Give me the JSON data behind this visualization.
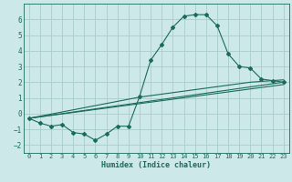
{
  "title": "",
  "xlabel": "Humidex (Indice chaleur)",
  "ylabel": "",
  "bg_color": "#cce8e8",
  "grid_color": "#aacccc",
  "line_color": "#1a6b5a",
  "marker_color": "#1a6b5a",
  "xlim": [
    -0.5,
    23.5
  ],
  "ylim": [
    -2.5,
    7.0
  ],
  "xticks": [
    0,
    1,
    2,
    3,
    4,
    5,
    6,
    7,
    8,
    9,
    10,
    11,
    12,
    13,
    14,
    15,
    16,
    17,
    18,
    19,
    20,
    21,
    22,
    23
  ],
  "yticks": [
    -2,
    -1,
    0,
    1,
    2,
    3,
    4,
    5,
    6
  ],
  "series1_x": [
    0,
    1,
    2,
    3,
    4,
    5,
    6,
    7,
    8,
    9,
    10,
    11,
    12,
    13,
    14,
    15,
    16,
    17,
    18,
    19,
    20,
    21,
    22,
    23
  ],
  "series1_y": [
    -0.3,
    -0.6,
    -0.8,
    -0.7,
    -1.2,
    -1.3,
    -1.7,
    -1.3,
    -0.8,
    -0.8,
    1.1,
    3.4,
    4.4,
    5.5,
    6.2,
    6.3,
    6.3,
    5.6,
    3.8,
    3.0,
    2.9,
    2.2,
    2.1,
    2.0
  ],
  "series2_x": [
    0,
    23
  ],
  "series2_y": [
    -0.3,
    2.0
  ],
  "series3_x": [
    0,
    23
  ],
  "series3_y": [
    -0.3,
    1.85
  ],
  "series4_x": [
    0,
    10,
    20,
    23
  ],
  "series4_y": [
    -0.3,
    1.05,
    2.0,
    2.15
  ]
}
